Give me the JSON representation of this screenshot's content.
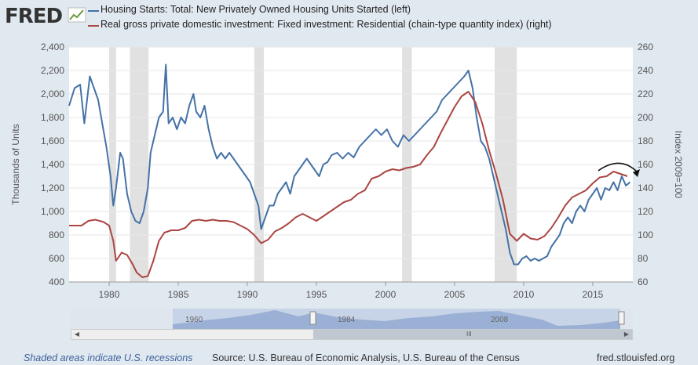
{
  "header": {
    "logo": "FRED",
    "legend": [
      {
        "label": "Housing Starts: Total: New Privately Owned Housing Units Started (left)",
        "color": "#4572a7"
      },
      {
        "label": "Real gross private domestic investment: Fixed investment: Residential (chain-type quantity index) (right)",
        "color": "#aa4643"
      }
    ]
  },
  "footer": {
    "recession_note": "Shaded areas indicate U.S. recessions",
    "source": "Source: U.S. Bureau of Economic Analysis, U.S. Bureau of the Census",
    "site": "fred.stlouisfed.org"
  },
  "navigator": {
    "labels": [
      "1960",
      "1984",
      "2008"
    ],
    "scroll_grip": "III"
  },
  "chart_data": {
    "type": "line",
    "ylabel": "Thousands of Units",
    "y2label": "Index 2009=100",
    "xlim": [
      1977.1,
      2017.9
    ],
    "ylim": [
      400,
      2400
    ],
    "y2lim": [
      60,
      260
    ],
    "x_ticks": [
      1980,
      1985,
      1990,
      1995,
      2000,
      2005,
      2010,
      2015
    ],
    "y_ticks": [
      400,
      600,
      800,
      1000,
      1200,
      1400,
      1600,
      1800,
      2000,
      2200,
      2400
    ],
    "y2_ticks": [
      60,
      80,
      100,
      120,
      140,
      160,
      180,
      200,
      220,
      240,
      260
    ],
    "grid": true,
    "recessions": [
      [
        1980.0,
        1980.5
      ],
      [
        1981.5,
        1982.85
      ],
      [
        1990.5,
        1991.2
      ],
      [
        2001.2,
        2001.9
      ],
      [
        2007.9,
        2009.5
      ]
    ],
    "series": [
      {
        "name": "Housing Starts: Total: New Privately Owned Housing Units Started (left)",
        "axis": "left",
        "color": "#4572a7",
        "x": [
          1977.1,
          1977.5,
          1977.9,
          1978.2,
          1978.6,
          1978.9,
          1979.2,
          1979.5,
          1979.8,
          1980.1,
          1980.3,
          1980.5,
          1980.8,
          1981.0,
          1981.3,
          1981.6,
          1981.9,
          1982.2,
          1982.5,
          1982.8,
          1983.0,
          1983.3,
          1983.6,
          1983.9,
          1984.1,
          1984.3,
          1984.6,
          1984.9,
          1985.2,
          1985.5,
          1985.8,
          1986.1,
          1986.3,
          1986.6,
          1986.9,
          1987.2,
          1987.5,
          1987.8,
          1988.1,
          1988.4,
          1988.7,
          1989.0,
          1989.3,
          1989.6,
          1989.9,
          1990.2,
          1990.5,
          1990.8,
          1991.0,
          1991.3,
          1991.6,
          1991.9,
          1992.2,
          1992.5,
          1992.8,
          1993.1,
          1993.4,
          1993.7,
          1994.0,
          1994.3,
          1994.6,
          1994.9,
          1995.2,
          1995.5,
          1995.8,
          1996.1,
          1996.5,
          1996.9,
          1997.3,
          1997.7,
          1998.1,
          1998.5,
          1998.9,
          1999.3,
          1999.7,
          2000.1,
          2000.5,
          2000.9,
          2001.3,
          2001.7,
          2002.1,
          2002.5,
          2002.9,
          2003.3,
          2003.7,
          2004.1,
          2004.5,
          2004.9,
          2005.3,
          2005.7,
          2006.0,
          2006.3,
          2006.6,
          2006.9,
          2007.2,
          2007.5,
          2007.8,
          2008.1,
          2008.4,
          2008.7,
          2009.0,
          2009.3,
          2009.6,
          2009.9,
          2010.2,
          2010.5,
          2010.8,
          2011.1,
          2011.4,
          2011.7,
          2012.0,
          2012.3,
          2012.6,
          2012.9,
          2013.2,
          2013.5,
          2013.8,
          2014.1,
          2014.4,
          2014.7,
          2015.0,
          2015.3,
          2015.6,
          2015.9,
          2016.2,
          2016.5,
          2016.8,
          2017.1,
          2017.4,
          2017.7
        ],
        "y": [
          1900,
          2050,
          2080,
          1750,
          2150,
          2050,
          1950,
          1750,
          1550,
          1300,
          1050,
          1200,
          1500,
          1450,
          1150,
          1000,
          920,
          900,
          1000,
          1200,
          1500,
          1650,
          1800,
          1850,
          2250,
          1750,
          1800,
          1700,
          1800,
          1750,
          1900,
          2000,
          1850,
          1800,
          1900,
          1700,
          1550,
          1450,
          1500,
          1450,
          1500,
          1450,
          1400,
          1350,
          1300,
          1250,
          1150,
          1050,
          850,
          950,
          1050,
          1050,
          1150,
          1200,
          1250,
          1150,
          1300,
          1350,
          1400,
          1450,
          1400,
          1350,
          1300,
          1400,
          1420,
          1480,
          1500,
          1450,
          1500,
          1460,
          1550,
          1600,
          1650,
          1700,
          1650,
          1700,
          1600,
          1550,
          1650,
          1600,
          1650,
          1700,
          1750,
          1800,
          1850,
          1950,
          2000,
          2050,
          2100,
          2150,
          2200,
          2050,
          1800,
          1600,
          1550,
          1450,
          1300,
          1150,
          1000,
          850,
          650,
          550,
          550,
          600,
          620,
          580,
          600,
          580,
          600,
          620,
          700,
          750,
          800,
          900,
          950,
          900,
          1000,
          1050,
          1000,
          1100,
          1150,
          1200,
          1100,
          1200,
          1180,
          1250,
          1180,
          1300,
          1220,
          1250
        ]
      },
      {
        "name": "Real gross private domestic investment: Fixed investment: Residential (chain-type quantity index) (right)",
        "axis": "right",
        "color": "#aa4643",
        "x": [
          1977.1,
          1978.0,
          1978.5,
          1979.0,
          1979.6,
          1980.0,
          1980.3,
          1980.5,
          1980.9,
          1981.3,
          1981.7,
          1982.0,
          1982.4,
          1982.8,
          1983.2,
          1983.6,
          1984.0,
          1984.5,
          1985.0,
          1985.5,
          1986.0,
          1986.5,
          1987.0,
          1987.5,
          1988.0,
          1988.5,
          1989.0,
          1989.5,
          1990.0,
          1990.5,
          1991.0,
          1991.5,
          1992.0,
          1992.5,
          1993.0,
          1993.5,
          1994.0,
          1994.5,
          1995.0,
          1995.5,
          1996.0,
          1996.5,
          1997.0,
          1997.5,
          1998.0,
          1998.5,
          1999.0,
          1999.5,
          2000.0,
          2000.5,
          2001.0,
          2001.5,
          2002.0,
          2002.5,
          2003.0,
          2003.5,
          2004.0,
          2004.5,
          2005.0,
          2005.5,
          2006.0,
          2006.5,
          2007.0,
          2007.5,
          2008.0,
          2008.5,
          2009.0,
          2009.5,
          2010.0,
          2010.5,
          2011.0,
          2011.5,
          2012.0,
          2012.5,
          2013.0,
          2013.5,
          2014.0,
          2014.5,
          2015.0,
          2015.5,
          2016.0,
          2016.5,
          2017.0,
          2017.5
        ],
        "y": [
          108,
          108,
          112,
          113,
          111,
          108,
          95,
          78,
          85,
          83,
          75,
          68,
          64,
          65,
          78,
          95,
          102,
          104,
          104,
          106,
          112,
          113,
          112,
          113,
          112,
          112,
          111,
          108,
          105,
          100,
          93,
          96,
          103,
          106,
          110,
          115,
          118,
          115,
          112,
          116,
          120,
          124,
          128,
          130,
          135,
          138,
          148,
          150,
          154,
          156,
          155,
          157,
          158,
          160,
          168,
          175,
          187,
          198,
          209,
          218,
          222,
          213,
          195,
          172,
          152,
          130,
          101,
          95,
          101,
          97,
          96,
          99,
          106,
          115,
          125,
          132,
          135,
          138,
          144,
          149,
          150,
          154,
          152,
          150
        ]
      }
    ]
  }
}
